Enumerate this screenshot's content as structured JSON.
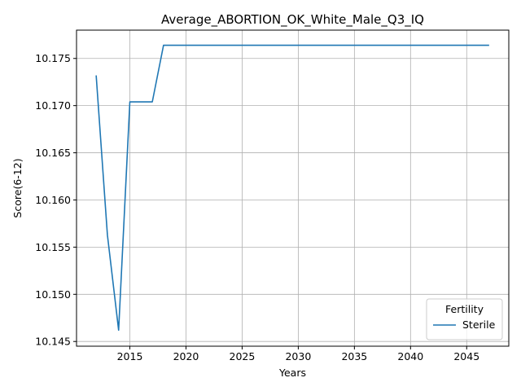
{
  "chart_data": {
    "type": "line",
    "title": "Average_ABORTION_OK_White_Male_Q3_IQ",
    "xlabel": "Years",
    "ylabel": "Score(6-12)",
    "xlim": [
      2010.25,
      2048.75
    ],
    "ylim": [
      10.1445,
      10.178
    ],
    "x_ticks": [
      2015,
      2020,
      2025,
      2030,
      2035,
      2040,
      2045
    ],
    "y_ticks": [
      10.145,
      10.15,
      10.155,
      10.16,
      10.165,
      10.17,
      10.175
    ],
    "grid": true,
    "legend": {
      "title": "Fertility",
      "placement": "lower-right"
    },
    "series": [
      {
        "name": "Sterile",
        "color": "#1f77b4",
        "x": [
          2012,
          2013,
          2014,
          2015,
          2016,
          2017,
          2018,
          2019,
          2020,
          2021,
          2022,
          2023,
          2024,
          2025,
          2026,
          2027,
          2028,
          2029,
          2030,
          2031,
          2032,
          2033,
          2034,
          2035,
          2036,
          2037,
          2038,
          2039,
          2040,
          2041,
          2042,
          2043,
          2044,
          2045,
          2046,
          2047
        ],
        "y": [
          10.1732,
          10.1563,
          10.1462,
          10.1704,
          10.1704,
          10.1704,
          10.1764,
          10.1764,
          10.1764,
          10.1764,
          10.1764,
          10.1764,
          10.1764,
          10.1764,
          10.1764,
          10.1764,
          10.1764,
          10.1764,
          10.1764,
          10.1764,
          10.1764,
          10.1764,
          10.1764,
          10.1764,
          10.1764,
          10.1764,
          10.1764,
          10.1764,
          10.1764,
          10.1764,
          10.1764,
          10.1764,
          10.1764,
          10.1764,
          10.1764,
          10.1764
        ]
      }
    ]
  }
}
